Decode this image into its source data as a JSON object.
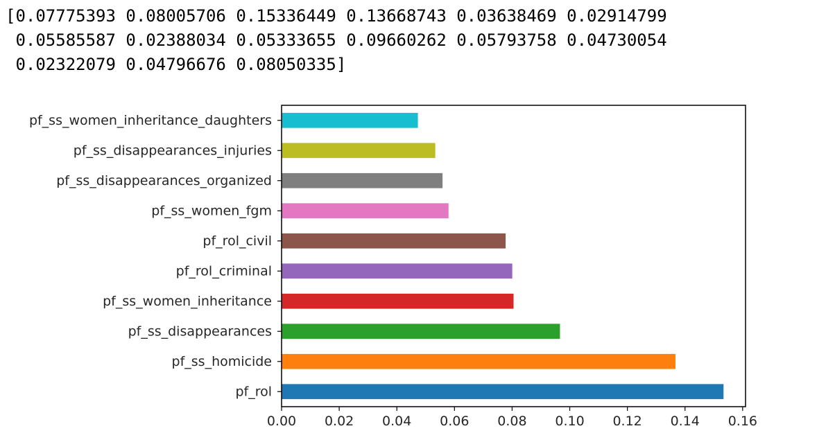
{
  "output": {
    "lines": [
      "[0.07775393 0.08005706 0.15336449 0.13668743 0.03638469 0.02914799",
      " 0.05585587 0.02388034 0.05333655 0.09660262 0.05793758 0.04730054",
      " 0.02322079 0.04796676 0.08050335]"
    ]
  },
  "chart_data": {
    "type": "bar",
    "orientation": "horizontal",
    "title": "",
    "xlabel": "",
    "ylabel": "",
    "categories": [
      "pf_rol",
      "pf_ss_homicide",
      "pf_ss_disappearances",
      "pf_ss_women_inheritance",
      "pf_rol_criminal",
      "pf_rol_civil",
      "pf_ss_women_fgm",
      "pf_ss_disappearances_organized",
      "pf_ss_disappearances_injuries",
      "pf_ss_women_inheritance_daughters"
    ],
    "values": [
      0.15336449,
      0.13668743,
      0.09660262,
      0.08050335,
      0.08005706,
      0.07775393,
      0.05793758,
      0.05585587,
      0.05333655,
      0.04730054
    ],
    "colors": [
      "#1f77b4",
      "#ff7f0e",
      "#2ca02c",
      "#d62728",
      "#9467bd",
      "#8c564b",
      "#e377c2",
      "#7f7f7f",
      "#bcbd22",
      "#17becf"
    ],
    "xlim": [
      0.0,
      0.161
    ],
    "xticks": [
      "0.00",
      "0.02",
      "0.04",
      "0.06",
      "0.08",
      "0.10",
      "0.12",
      "0.14",
      "0.16"
    ],
    "xtick_values": [
      0.0,
      0.02,
      0.04,
      0.06,
      0.08,
      0.1,
      0.12,
      0.14,
      0.16
    ],
    "grid": false,
    "legend": "none"
  }
}
